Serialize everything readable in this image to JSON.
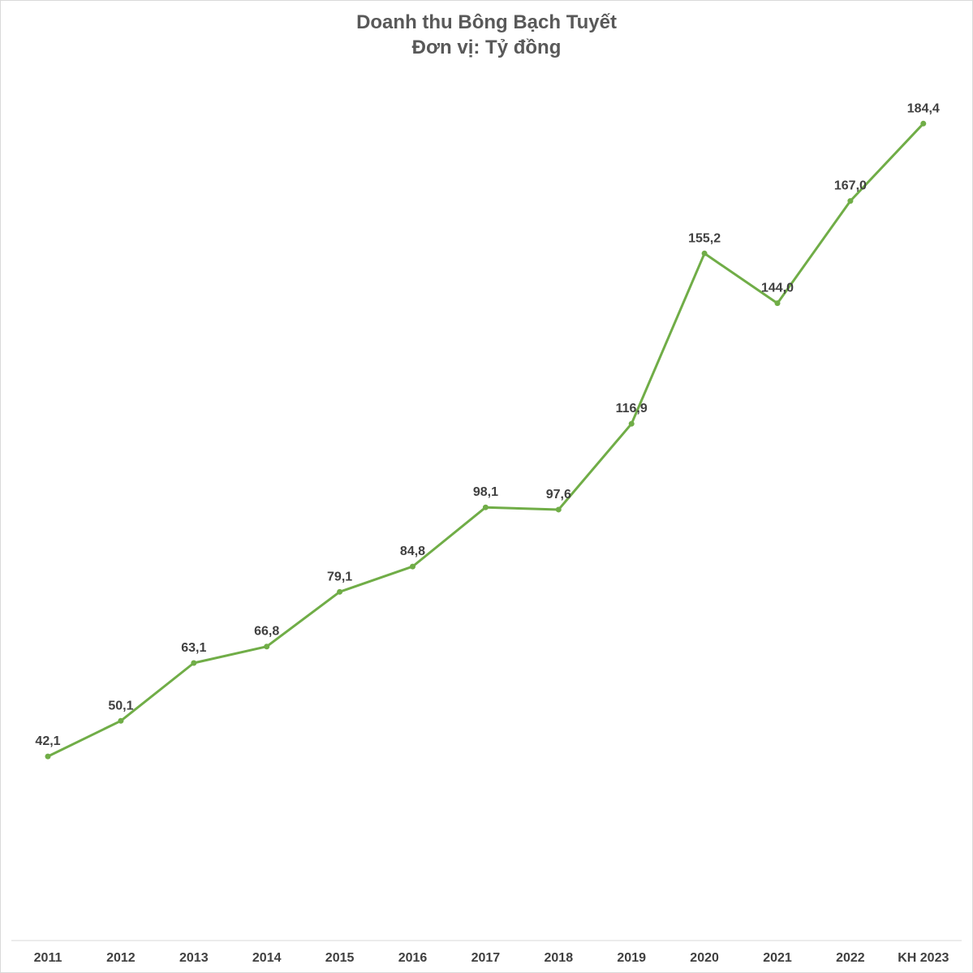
{
  "chart_data": {
    "type": "line",
    "title": "Doanh thu Bông Bạch Tuyết",
    "subtitle": "Đơn vị: Tỷ đồng",
    "categories": [
      "2011",
      "2012",
      "2013",
      "2014",
      "2015",
      "2016",
      "2017",
      "2018",
      "2019",
      "2020",
      "2021",
      "2022",
      "KH 2023"
    ],
    "series": [
      {
        "name": "Doanh thu",
        "values": [
          42.1,
          50.1,
          63.1,
          66.8,
          79.1,
          84.8,
          98.1,
          97.6,
          116.9,
          155.2,
          144.0,
          167.0,
          184.4
        ],
        "labels": [
          "42,1",
          "50,1",
          "63,1",
          "66,8",
          "79,1",
          "84,8",
          "98,1",
          "97,6",
          "116,9",
          "155,2",
          "144,0",
          "167,0",
          "184,4"
        ],
        "color": "#70ad47"
      }
    ],
    "xlabel": "",
    "ylabel": "",
    "ylim": [
      0,
      200
    ],
    "grid": false,
    "legend": "none"
  }
}
